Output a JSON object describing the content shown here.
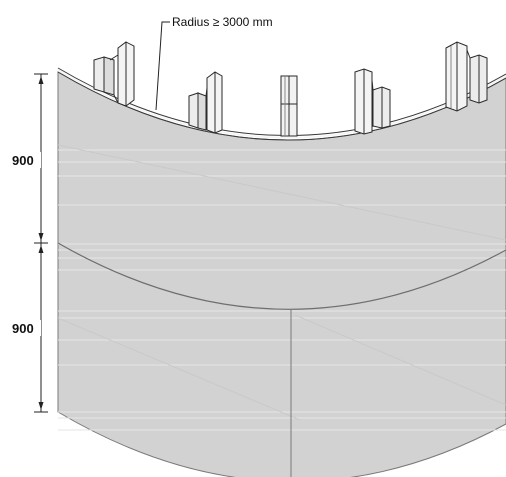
{
  "annotation": {
    "radius_label": "Radius ≥ 3000 mm"
  },
  "dimensions": {
    "upper": "900",
    "lower": "900"
  },
  "colors": {
    "panel_fill": "#d2d2d2",
    "panel_edge": "#6e6e6e",
    "stud_fill": "#ececec",
    "stud_edge": "#2a2a2a",
    "dim_line": "#222222"
  }
}
